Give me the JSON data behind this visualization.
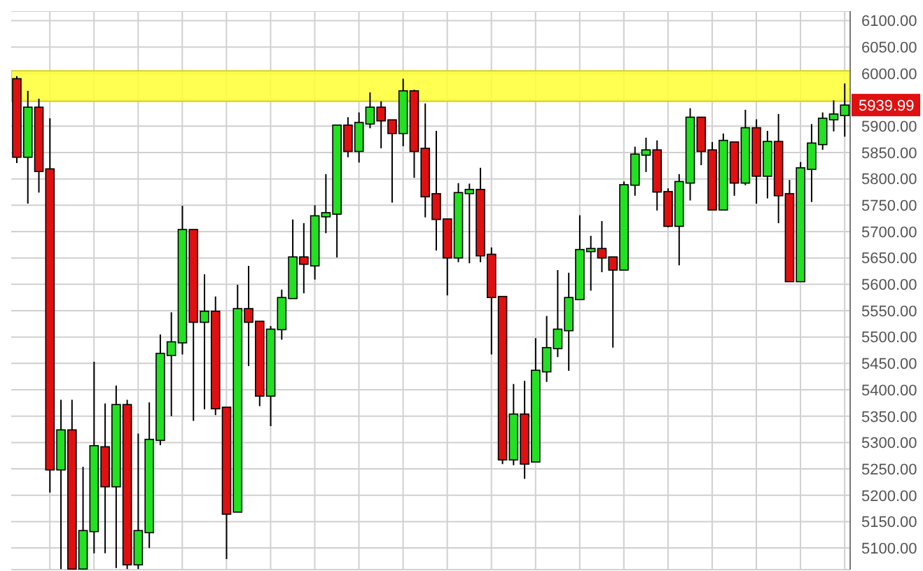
{
  "chart_data": {
    "type": "candlestick",
    "categories": [
      null,
      null,
      null,
      null,
      null,
      null,
      null,
      null,
      null,
      null,
      null,
      null,
      null,
      null,
      null,
      null,
      null,
      null,
      null,
      null,
      null,
      null,
      null,
      null,
      null,
      null,
      null,
      null,
      null,
      null,
      null,
      null,
      null,
      null,
      null,
      null,
      null,
      null,
      null,
      null,
      null,
      null,
      null,
      null,
      null,
      null,
      null,
      null,
      null,
      null,
      null,
      null,
      null,
      null,
      null,
      null,
      null,
      null,
      null,
      null,
      null,
      null,
      null,
      null,
      null,
      null,
      null,
      null,
      null,
      null,
      null,
      null,
      null,
      null,
      null,
      null
    ],
    "ohlc": [
      [
        5990,
        5995,
        5830,
        5841
      ],
      [
        5841,
        5967,
        5753,
        5936
      ],
      [
        5936,
        5952,
        5774,
        5814
      ],
      [
        5819,
        5915,
        5205,
        5248
      ],
      [
        5248,
        5381,
        5060,
        5324
      ],
      [
        5324,
        5381,
        5060,
        5060
      ],
      [
        5060,
        5254,
        5060,
        5133
      ],
      [
        5131,
        5453,
        5090,
        5294
      ],
      [
        5292,
        5374,
        5090,
        5216
      ],
      [
        5216,
        5408,
        5062,
        5372
      ],
      [
        5372,
        5381,
        5060,
        5068
      ],
      [
        5068,
        5317,
        5060,
        5133
      ],
      [
        5129,
        5376,
        5100,
        5306
      ],
      [
        5304,
        5505,
        5295,
        5469
      ],
      [
        5465,
        5547,
        5350,
        5491
      ],
      [
        5489,
        5749,
        5467,
        5704
      ],
      [
        5704,
        5704,
        5341,
        5528
      ],
      [
        5528,
        5619,
        5363,
        5549
      ],
      [
        5549,
        5577,
        5352,
        5364
      ],
      [
        5367,
        5367,
        5079,
        5164
      ],
      [
        5168,
        5599,
        5168,
        5554
      ],
      [
        5554,
        5635,
        5445,
        5528
      ],
      [
        5530,
        5530,
        5369,
        5388
      ],
      [
        5388,
        5521,
        5331,
        5515
      ],
      [
        5514,
        5590,
        5495,
        5575
      ],
      [
        5573,
        5723,
        5573,
        5652
      ],
      [
        5652,
        5716,
        5583,
        5638
      ],
      [
        5635,
        5750,
        5609,
        5730
      ],
      [
        5728,
        5809,
        5697,
        5736
      ],
      [
        5733,
        5902,
        5651,
        5902
      ],
      [
        5902,
        5917,
        5841,
        5852
      ],
      [
        5852,
        5926,
        5831,
        5907
      ],
      [
        5904,
        5964,
        5896,
        5936
      ],
      [
        5936,
        5947,
        5858,
        5910
      ],
      [
        5912,
        5912,
        5755,
        5886
      ],
      [
        5886,
        5990,
        5862,
        5967
      ],
      [
        5967,
        5969,
        5802,
        5852
      ],
      [
        5858,
        5943,
        5727,
        5766
      ],
      [
        5772,
        5891,
        5664,
        5723
      ],
      [
        5724,
        5724,
        5579,
        5650
      ],
      [
        5650,
        5792,
        5642,
        5774
      ],
      [
        5772,
        5791,
        5640,
        5780
      ],
      [
        5780,
        5821,
        5642,
        5654
      ],
      [
        5657,
        5670,
        5467,
        5575
      ],
      [
        5577,
        5577,
        5259,
        5267
      ],
      [
        5267,
        5411,
        5257,
        5354
      ],
      [
        5354,
        5417,
        5231,
        5259
      ],
      [
        5263,
        5498,
        5263,
        5437
      ],
      [
        5434,
        5540,
        5415,
        5480
      ],
      [
        5478,
        5627,
        5462,
        5515
      ],
      [
        5512,
        5622,
        5436,
        5575
      ],
      [
        5571,
        5731,
        5571,
        5666
      ],
      [
        5662,
        5692,
        5588,
        5668
      ],
      [
        5668,
        5720,
        5623,
        5650
      ],
      [
        5652,
        5652,
        5480,
        5627
      ],
      [
        5627,
        5795,
        5627,
        5789
      ],
      [
        5788,
        5861,
        5768,
        5847
      ],
      [
        5845,
        5878,
        5813,
        5855
      ],
      [
        5855,
        5873,
        5740,
        5775
      ],
      [
        5776,
        5782,
        5708,
        5710
      ],
      [
        5710,
        5809,
        5636,
        5795
      ],
      [
        5792,
        5934,
        5759,
        5917
      ],
      [
        5917,
        5917,
        5826,
        5852
      ],
      [
        5855,
        5870,
        5741,
        5741
      ],
      [
        5741,
        5886,
        5741,
        5873
      ],
      [
        5870,
        5870,
        5768,
        5792
      ],
      [
        5792,
        5931,
        5788,
        5897
      ],
      [
        5897,
        5913,
        5753,
        5805
      ],
      [
        5805,
        5891,
        5763,
        5871
      ],
      [
        5871,
        5923,
        5716,
        5768
      ],
      [
        5772,
        5798,
        5605,
        5605
      ],
      [
        5605,
        5832,
        5605,
        5821
      ],
      [
        5818,
        5904,
        5756,
        5868
      ],
      [
        5865,
        5926,
        5855,
        5915
      ],
      [
        5912,
        5949,
        5890,
        5923
      ],
      [
        5920,
        5981,
        5880,
        5939.99
      ]
    ],
    "colors": [
      "#e01010",
      "#22e022",
      "#e01010",
      "#e01010",
      "#22e022",
      "#e01010",
      "#22e022",
      "#22e022",
      "#e01010",
      "#22e022",
      "#e01010",
      "#22e022",
      "#22e022",
      "#22e022",
      "#22e022",
      "#22e022",
      "#e01010",
      "#22e022",
      "#e01010",
      "#e01010",
      "#22e022",
      "#e01010",
      "#e01010",
      "#22e022",
      "#22e022",
      "#22e022",
      "#e01010",
      "#22e022",
      "#22e022",
      "#22e022",
      "#e01010",
      "#22e022",
      "#22e022",
      "#e01010",
      "#e01010",
      "#22e022",
      "#e01010",
      "#e01010",
      "#e01010",
      "#e01010",
      "#22e022",
      "#22e022",
      "#e01010",
      "#e01010",
      "#e01010",
      "#22e022",
      "#e01010",
      "#22e022",
      "#22e022",
      "#22e022",
      "#22e022",
      "#22e022",
      "#22e022",
      "#e01010",
      "#e01010",
      "#22e022",
      "#22e022",
      "#22e022",
      "#e01010",
      "#e01010",
      "#22e022",
      "#22e022",
      "#e01010",
      "#e01010",
      "#22e022",
      "#e01010",
      "#22e022",
      "#e01010",
      "#22e022",
      "#e01010",
      "#e01010",
      "#22e022",
      "#22e022",
      "#22e022",
      "#22e022",
      "#22e022"
    ],
    "ylim": [
      5059,
      6118
    ],
    "yticks": [
      {
        "value": 5100,
        "label": "5100.00"
      },
      {
        "value": 5150,
        "label": "5150.00"
      },
      {
        "value": 5200,
        "label": "5200.00"
      },
      {
        "value": 5250,
        "label": "5250.00"
      },
      {
        "value": 5300,
        "label": "5300.00"
      },
      {
        "value": 5350,
        "label": "5350.00"
      },
      {
        "value": 5400,
        "label": "5400.00"
      },
      {
        "value": 5450,
        "label": "5450.00"
      },
      {
        "value": 5500,
        "label": "5500.00"
      },
      {
        "value": 5550,
        "label": "5550.00"
      },
      {
        "value": 5600,
        "label": "5600.00"
      },
      {
        "value": 5650,
        "label": "5650.00"
      },
      {
        "value": 5700,
        "label": "5700.00"
      },
      {
        "value": 5750,
        "label": "5750.00"
      },
      {
        "value": 5800,
        "label": "5800.00"
      },
      {
        "value": 5850,
        "label": "5850.00"
      },
      {
        "value": 5900,
        "label": "5900.00"
      },
      {
        "value": 5950,
        "label": null
      },
      {
        "value": 6000,
        "label": "6000.00"
      },
      {
        "value": 6050,
        "label": "6050.00"
      },
      {
        "value": 6100,
        "label": "6100.00"
      }
    ],
    "bands": [
      {
        "axis": "y",
        "from": 5947,
        "to": 6005,
        "color": "#ffff33"
      }
    ],
    "annotations": [
      "5939.99"
    ],
    "grid": true
  }
}
